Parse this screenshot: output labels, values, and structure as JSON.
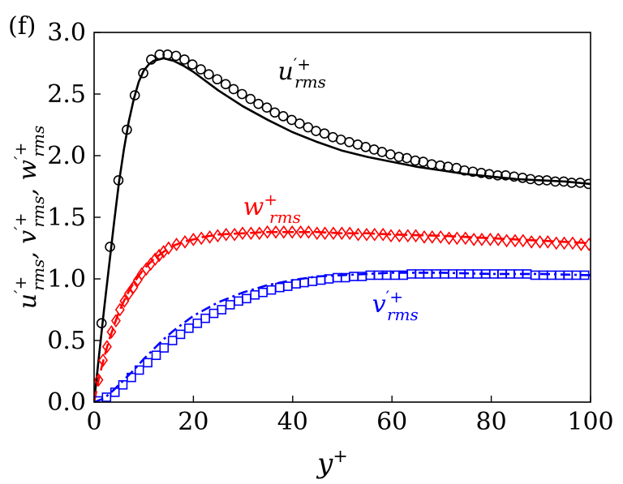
{
  "chart_data": {
    "type": "line",
    "panel_label": "(f)",
    "xlabel": "y",
    "xlabel_sup": "+",
    "ylabel": "u′+rms, v′+rms, w′+rms",
    "ylabel_parts": [
      {
        "base": "u",
        "sup": "′+",
        "sub": "rms"
      },
      {
        "base": "v",
        "sup": "′+",
        "sub": "rms"
      },
      {
        "base": "w",
        "sup": "′+",
        "sub": "rms"
      }
    ],
    "xlim": [
      0,
      100
    ],
    "ylim": [
      0.0,
      3.0
    ],
    "xticks": [
      "0",
      "20",
      "40",
      "60",
      "80",
      "100"
    ],
    "yticks": [
      "0.0",
      "0.5",
      "1.0",
      "1.5",
      "2.0",
      "2.5",
      "3.0"
    ],
    "series": [
      {
        "name": "u_rms",
        "label_base": "u",
        "label_sup": "′+",
        "label_sub": "rms",
        "color": "#000000",
        "line_style": "solid",
        "marker": "circle",
        "line_x": [
          0,
          1,
          2,
          3,
          4,
          5,
          6,
          7,
          8,
          9,
          10,
          11,
          12,
          13,
          14,
          15,
          16,
          18,
          20,
          22,
          25,
          30,
          35,
          40,
          45,
          50,
          55,
          60,
          65,
          70,
          75,
          80,
          85,
          90,
          95,
          100
        ],
        "line_y": [
          0.0,
          0.38,
          0.75,
          1.1,
          1.45,
          1.78,
          2.05,
          2.28,
          2.46,
          2.6,
          2.69,
          2.74,
          2.77,
          2.78,
          2.79,
          2.78,
          2.77,
          2.73,
          2.68,
          2.62,
          2.53,
          2.4,
          2.29,
          2.19,
          2.11,
          2.04,
          1.99,
          1.95,
          1.91,
          1.88,
          1.85,
          1.83,
          1.81,
          1.8,
          1.79,
          1.77
        ],
        "marker_x": [
          1.5,
          3.2,
          4.9,
          6.6,
          8.2,
          9.9,
          11.5,
          13.2,
          14.8,
          16.5,
          18.2,
          19.8,
          21.5,
          23.1,
          24.8,
          26.5,
          28.1,
          29.8,
          31.5,
          33.1,
          34.8,
          36.4,
          38.1,
          39.8,
          41.4,
          43.1,
          44.7,
          46.4,
          48.1,
          49.7,
          51.4,
          53.1,
          54.7,
          56.4,
          58.0,
          59.7,
          61.4,
          63.0,
          64.7,
          66.3,
          68.0,
          69.7,
          71.3,
          73.0,
          74.6,
          76.3,
          78.0,
          79.6,
          81.3,
          82.9,
          84.6,
          86.3,
          87.9,
          89.6,
          91.2,
          92.9,
          94.6,
          96.2,
          97.9,
          99.6
        ],
        "marker_y": [
          0.64,
          1.26,
          1.8,
          2.21,
          2.49,
          2.67,
          2.78,
          2.82,
          2.82,
          2.81,
          2.78,
          2.74,
          2.7,
          2.66,
          2.62,
          2.58,
          2.54,
          2.5,
          2.46,
          2.42,
          2.39,
          2.35,
          2.32,
          2.29,
          2.26,
          2.23,
          2.2,
          2.18,
          2.15,
          2.13,
          2.11,
          2.09,
          2.07,
          2.05,
          2.03,
          2.01,
          1.99,
          1.98,
          1.96,
          1.95,
          1.93,
          1.92,
          1.91,
          1.9,
          1.88,
          1.87,
          1.86,
          1.85,
          1.84,
          1.84,
          1.83,
          1.82,
          1.81,
          1.8,
          1.8,
          1.79,
          1.79,
          1.78,
          1.78,
          1.77
        ]
      },
      {
        "name": "w_rms",
        "label_base": "w",
        "label_sup": "+",
        "label_sub": "rms",
        "color": "#ff0000",
        "line_style": "dashed",
        "marker": "diamond",
        "line_x": [
          0,
          1,
          2,
          3,
          4,
          5,
          6,
          7,
          8,
          10,
          12,
          14,
          16,
          18,
          20,
          22,
          25,
          30,
          35,
          40,
          45,
          50,
          55,
          60,
          70,
          80,
          90,
          100
        ],
        "line_y": [
          0.0,
          0.2,
          0.36,
          0.5,
          0.62,
          0.73,
          0.82,
          0.9,
          0.97,
          1.08,
          1.16,
          1.22,
          1.27,
          1.3,
          1.32,
          1.34,
          1.36,
          1.37,
          1.38,
          1.38,
          1.38,
          1.37,
          1.37,
          1.36,
          1.35,
          1.33,
          1.31,
          1.29
        ],
        "marker_x": [
          0.9,
          1.8,
          2.6,
          3.5,
          4.4,
          5.2,
          6.1,
          7.0,
          7.9,
          8.8,
          9.6,
          10.5,
          11.4,
          12.3,
          13.1,
          14.0,
          15.0,
          16.6,
          18.3,
          20.0,
          21.6,
          23.3,
          24.9,
          26.6,
          28.3,
          29.9,
          31.6,
          33.3,
          34.9,
          36.6,
          38.2,
          39.9,
          41.6,
          43.2,
          44.9,
          46.5,
          48.2,
          49.9,
          51.5,
          53.2,
          54.9,
          56.5,
          58.2,
          59.8,
          61.5,
          63.2,
          64.8,
          66.5,
          68.1,
          69.8,
          71.5,
          73.1,
          74.8,
          76.5,
          78.1,
          79.8,
          81.4,
          83.1,
          84.8,
          86.4,
          88.1,
          89.8,
          91.4,
          93.1,
          94.7,
          96.4,
          98.1,
          99.7
        ],
        "marker_y": [
          0.18,
          0.34,
          0.45,
          0.57,
          0.66,
          0.75,
          0.82,
          0.88,
          0.93,
          0.99,
          1.04,
          1.08,
          1.12,
          1.16,
          1.19,
          1.22,
          1.25,
          1.28,
          1.3,
          1.32,
          1.33,
          1.34,
          1.35,
          1.36,
          1.36,
          1.37,
          1.37,
          1.37,
          1.38,
          1.38,
          1.38,
          1.38,
          1.38,
          1.38,
          1.37,
          1.37,
          1.37,
          1.37,
          1.37,
          1.36,
          1.36,
          1.36,
          1.36,
          1.35,
          1.35,
          1.35,
          1.35,
          1.34,
          1.34,
          1.34,
          1.33,
          1.33,
          1.33,
          1.32,
          1.32,
          1.32,
          1.32,
          1.31,
          1.31,
          1.31,
          1.3,
          1.3,
          1.3,
          1.29,
          1.29,
          1.29,
          1.28,
          1.28
        ]
      },
      {
        "name": "v_rms",
        "label_base": "v",
        "label_sup": "′+",
        "label_sub": "rms",
        "color": "#0000ff",
        "line_style": "dashdot",
        "marker": "square",
        "line_x": [
          0,
          2,
          4,
          6,
          8,
          10,
          12,
          14,
          16,
          18,
          20,
          25,
          30,
          35,
          40,
          45,
          50,
          55,
          60,
          65,
          70,
          80,
          90,
          100
        ],
        "line_y": [
          0.0,
          0.03,
          0.1,
          0.18,
          0.26,
          0.35,
          0.43,
          0.51,
          0.58,
          0.64,
          0.7,
          0.81,
          0.89,
          0.95,
          0.99,
          1.02,
          1.03,
          1.04,
          1.05,
          1.05,
          1.05,
          1.04,
          1.04,
          1.03
        ],
        "marker_x": [
          0.8,
          2.5,
          4.2,
          5.8,
          7.5,
          9.1,
          10.8,
          12.5,
          14.1,
          15.8,
          17.4,
          19.1,
          20.8,
          22.4,
          24.1,
          25.7,
          27.4,
          29.1,
          30.7,
          32.4,
          34.0,
          35.7,
          37.4,
          39.0,
          40.7,
          42.3,
          44.0,
          45.7,
          47.3,
          49.0,
          50.6,
          52.3,
          54.0,
          55.6,
          57.3,
          58.9,
          60.6,
          62.3,
          63.9,
          65.6,
          67.2,
          68.9,
          70.6,
          72.2,
          73.9,
          75.5,
          77.2,
          78.9,
          80.5,
          82.2,
          83.8,
          85.5,
          87.2,
          88.8,
          90.5,
          92.1,
          93.8,
          95.5,
          97.1,
          98.8
        ],
        "marker_y": [
          0.01,
          0.04,
          0.08,
          0.14,
          0.2,
          0.26,
          0.32,
          0.38,
          0.44,
          0.5,
          0.55,
          0.6,
          0.64,
          0.68,
          0.72,
          0.75,
          0.79,
          0.82,
          0.84,
          0.87,
          0.89,
          0.91,
          0.93,
          0.94,
          0.96,
          0.97,
          0.98,
          0.99,
          1.0,
          1.01,
          1.01,
          1.02,
          1.02,
          1.03,
          1.03,
          1.03,
          1.03,
          1.03,
          1.04,
          1.04,
          1.04,
          1.04,
          1.04,
          1.04,
          1.04,
          1.04,
          1.04,
          1.04,
          1.04,
          1.04,
          1.04,
          1.04,
          1.04,
          1.03,
          1.03,
          1.03,
          1.03,
          1.03,
          1.03,
          1.03
        ]
      }
    ],
    "annotations": [
      {
        "series": "u_rms",
        "x": 37,
        "y": 2.62
      },
      {
        "series": "w_rms",
        "x": 30,
        "y": 1.52
      },
      {
        "series": "v_rms",
        "x": 56,
        "y": 0.73
      }
    ]
  }
}
